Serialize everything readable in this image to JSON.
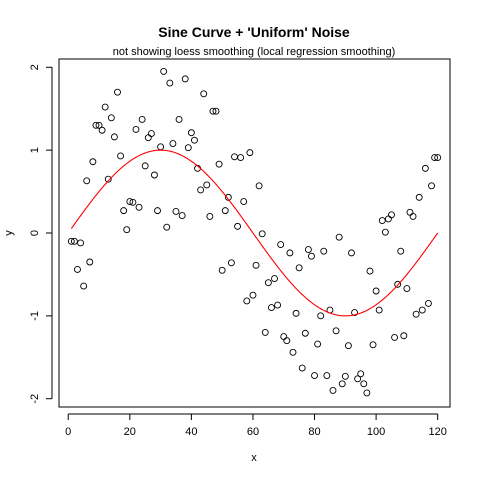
{
  "chart_data": {
    "type": "scatter",
    "title": "Sine Curve + 'Uniform' Noise",
    "subtitle": "not showing loess smoothing (local regression smoothing)",
    "xlabel": "x",
    "ylabel": "y",
    "xlim": [
      -3,
      124
    ],
    "ylim": [
      -2.1,
      2.1
    ],
    "xticks": [
      0,
      20,
      40,
      60,
      80,
      100,
      120
    ],
    "yticks": [
      -2,
      -1,
      0,
      1,
      2
    ],
    "grid": false,
    "legend": "none",
    "series": [
      {
        "kind": "points",
        "marker": "open-circle",
        "color": "#000000",
        "x": [
          1,
          2,
          3,
          4,
          5,
          6,
          7,
          8,
          9,
          10,
          11,
          12,
          13,
          14,
          15,
          16,
          17,
          18,
          19,
          20,
          21,
          22,
          23,
          24,
          25,
          26,
          27,
          28,
          29,
          30,
          31,
          32,
          33,
          34,
          35,
          36,
          37,
          38,
          39,
          40,
          41,
          42,
          43,
          44,
          45,
          46,
          47,
          48,
          49,
          50,
          51,
          52,
          53,
          54,
          55,
          56,
          57,
          58,
          59,
          60,
          61,
          62,
          63,
          64,
          65,
          66,
          67,
          68,
          69,
          70,
          71,
          72,
          73,
          74,
          75,
          76,
          77,
          78,
          79,
          80,
          81,
          82,
          83,
          84,
          85,
          86,
          87,
          88,
          89,
          90,
          91,
          92,
          93,
          94,
          95,
          96,
          97,
          98,
          99,
          100,
          101,
          102,
          103,
          104,
          105,
          106,
          107,
          108,
          109,
          110,
          111,
          112,
          113,
          114,
          115,
          116,
          117,
          118,
          119,
          120
        ],
        "y": [
          -0.1,
          -0.1,
          -0.44,
          -0.12,
          -0.64,
          0.63,
          -0.35,
          0.86,
          1.3,
          1.3,
          1.24,
          1.52,
          0.65,
          1.39,
          1.16,
          1.7,
          0.93,
          0.27,
          0.04,
          0.38,
          0.37,
          1.25,
          0.31,
          1.37,
          0.81,
          1.15,
          1.2,
          0.7,
          0.27,
          1.04,
          1.95,
          0.07,
          1.81,
          1.08,
          0.26,
          1.37,
          0.21,
          1.86,
          1.03,
          1.21,
          1.12,
          0.78,
          0.52,
          1.68,
          0.58,
          0.2,
          1.47,
          1.47,
          0.83,
          -0.45,
          0.27,
          0.43,
          -0.36,
          0.92,
          0.08,
          0.91,
          0.38,
          -0.82,
          0.97,
          -0.75,
          -0.39,
          0.57,
          -0.01,
          -1.2,
          -0.6,
          -0.9,
          -0.55,
          -0.87,
          -0.14,
          -1.25,
          -1.3,
          -0.24,
          -1.44,
          -0.97,
          -0.42,
          -1.63,
          -1.21,
          -0.2,
          -0.28,
          -1.72,
          -1.34,
          -1.0,
          -0.22,
          -1.72,
          -0.93,
          -1.9,
          -1.18,
          -0.05,
          -1.82,
          -1.73,
          -1.36,
          -0.24,
          -0.96,
          -1.76,
          -1.7,
          -1.82,
          -1.93,
          -0.46,
          -1.35,
          -0.7,
          -0.93,
          0.15,
          0.01,
          0.17,
          0.22,
          -1.26,
          -0.62,
          -0.22,
          -1.24,
          -0.67,
          0.25,
          0.2,
          -0.98,
          0.43,
          -0.93,
          0.78,
          -0.85,
          0.57,
          0.91,
          0.91
        ]
      },
      {
        "kind": "line",
        "color": "#ff0000",
        "function": "sin",
        "x": [
          1,
          5,
          10,
          15,
          20,
          25,
          30,
          35,
          40,
          45,
          50,
          55,
          60,
          65,
          70,
          75,
          80,
          85,
          90,
          95,
          100,
          105,
          110,
          115,
          120
        ],
        "y": [
          0.05,
          0.26,
          0.5,
          0.7,
          0.86,
          0.97,
          1.0,
          0.97,
          0.86,
          0.7,
          0.5,
          0.26,
          0.0,
          -0.26,
          -0.5,
          -0.71,
          -0.87,
          -0.97,
          -1.0,
          -0.97,
          -0.87,
          -0.71,
          -0.5,
          -0.26,
          0.0
        ]
      }
    ]
  }
}
